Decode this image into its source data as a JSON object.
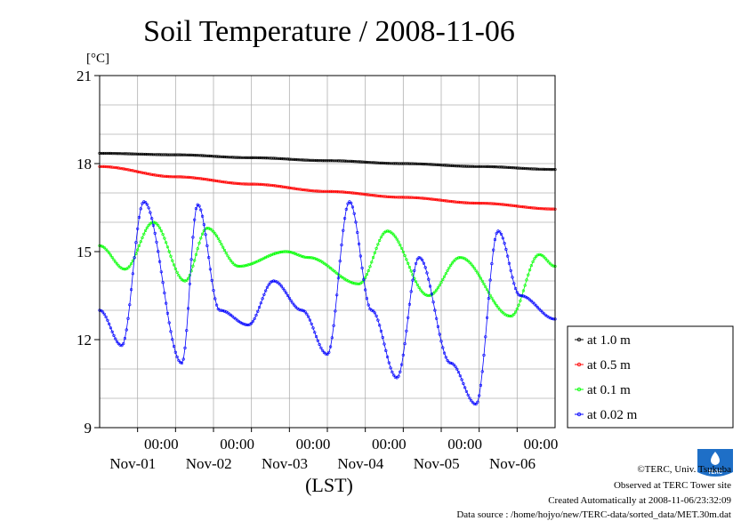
{
  "chart_data": {
    "type": "line",
    "title": "Soil Temperature / 2008-11-06",
    "ylabel": "[°C]",
    "xlabel": "(LST)",
    "ylim": [
      9,
      21
    ],
    "yticks": [
      9,
      12,
      15,
      18,
      21
    ],
    "xlim_hours": [
      0,
      144
    ],
    "xtick_time_label": "00:00",
    "xtick_day_labels": [
      "Nov-01",
      "Nov-02",
      "Nov-03",
      "Nov-04",
      "Nov-05",
      "Nov-06"
    ],
    "grid": true,
    "legend_position": "right",
    "series": [
      {
        "name": "at 1.0 m",
        "color": "#000000",
        "x": [
          0,
          24,
          48,
          72,
          96,
          120,
          144
        ],
        "y": [
          18.35,
          18.3,
          18.2,
          18.1,
          18.0,
          17.9,
          17.8
        ]
      },
      {
        "name": "at 0.5 m",
        "color": "#ff0000",
        "x": [
          0,
          24,
          48,
          72,
          96,
          120,
          144
        ],
        "y": [
          17.9,
          17.55,
          17.3,
          17.05,
          16.85,
          16.65,
          16.45
        ]
      },
      {
        "name": "at 0.1 m",
        "color": "#00ff00",
        "x": [
          0,
          8,
          17,
          27,
          34,
          44,
          59,
          66,
          82,
          91,
          104,
          114,
          130,
          139,
          144
        ],
        "y": [
          15.2,
          14.4,
          16.0,
          14.0,
          15.8,
          14.5,
          15.0,
          14.8,
          13.9,
          15.7,
          13.5,
          14.8,
          12.8,
          14.9,
          14.5
        ]
      },
      {
        "name": "at 0.02 m",
        "color": "#0000ff",
        "x": [
          0,
          7,
          14,
          26,
          31,
          38,
          47,
          55,
          64,
          72,
          79,
          86,
          94,
          101,
          111,
          119,
          126,
          133,
          144
        ],
        "y": [
          13.0,
          11.8,
          16.7,
          11.2,
          16.6,
          13.0,
          12.5,
          14.0,
          13.0,
          11.5,
          16.7,
          13.0,
          10.7,
          14.8,
          11.2,
          9.8,
          15.7,
          13.5,
          12.7
        ]
      }
    ]
  },
  "footer": {
    "copyright": "©TERC, Univ. Tsukuba",
    "site": "Observed at TERC Tower site",
    "created": "Created Automatically at 2008-11-06/23:32:09",
    "source": "Data source : /home/hojyo/new/TERC-data/sorted_data/MET.30m.dat"
  },
  "logo": {
    "text": "TERC",
    "color": "#1e6fc7"
  }
}
